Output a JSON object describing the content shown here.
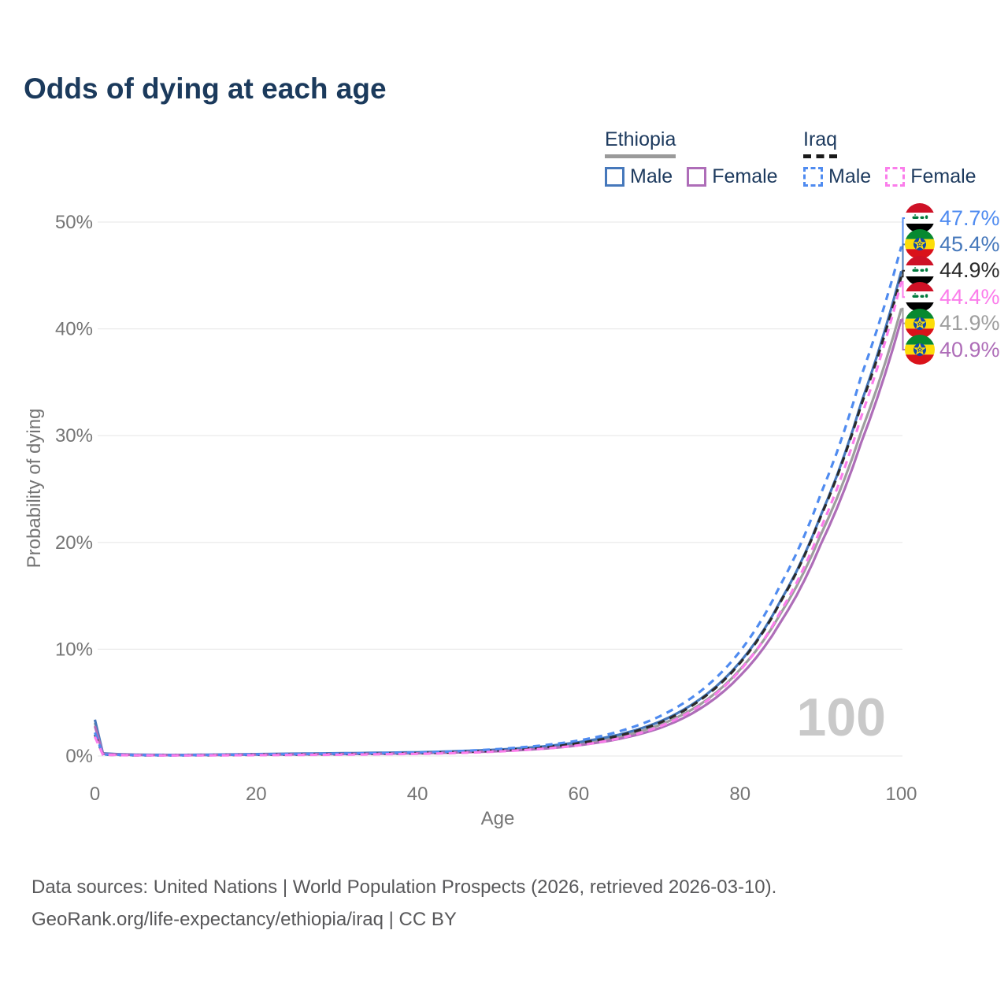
{
  "title": "Odds of dying at each age",
  "watermark": "100",
  "colors": {
    "title_text": "#1b3a5c",
    "legend_text": "#1d3a5e",
    "axis_text": "#757575",
    "grid_line": "#e9e9e9",
    "watermark_text": "#c9c9c9",
    "footer_text": "#58585a"
  },
  "legend": {
    "groups": [
      {
        "country": "Ethiopia",
        "line_style": "solid",
        "underline_color": "#9a9a9a",
        "items": [
          {
            "label": "Male",
            "color": "#4678bb",
            "style": "solid"
          },
          {
            "label": "Female",
            "color": "#ae6db8",
            "style": "solid"
          }
        ]
      },
      {
        "country": "Iraq",
        "line_style": "dashed",
        "underline_color": "#1a1a1a",
        "items": [
          {
            "label": "Male",
            "color": "#4f8bf0",
            "style": "dashed"
          },
          {
            "label": "Female",
            "color": "#fb7deb",
            "style": "dashed"
          }
        ]
      }
    ]
  },
  "footer": {
    "line1": "Data sources: United Nations | World Population Prospects (2026, retrieved 2026-03-10).",
    "line2": "GeoRank.org/life-expectancy/ethiopia/iraq | CC BY"
  },
  "chart_data": {
    "type": "line",
    "title": "Odds of dying at each age",
    "xlabel": "Age",
    "ylabel": "Probability of dying",
    "xlim": [
      0,
      100
    ],
    "ylim": [
      0,
      50
    ],
    "xticks": [
      0,
      20,
      40,
      60,
      80,
      100
    ],
    "yticks": [
      0,
      10,
      20,
      30,
      40,
      50
    ],
    "ytick_suffix": "%",
    "grid": "horizontal",
    "legend_position": "top-right",
    "x": [
      0,
      1,
      5,
      10,
      15,
      20,
      25,
      30,
      35,
      40,
      45,
      50,
      55,
      60,
      65,
      70,
      75,
      80,
      85,
      90,
      95,
      100
    ],
    "series": [
      {
        "name": "Iraq Male",
        "country": "Iraq",
        "sex": "Male",
        "color": "#4f8bf0",
        "line": "dashed",
        "end_label": "47.7%",
        "end_value": 47.7,
        "values": [
          2.2,
          0.15,
          0.08,
          0.07,
          0.1,
          0.15,
          0.18,
          0.22,
          0.27,
          0.33,
          0.45,
          0.65,
          0.95,
          1.45,
          2.3,
          3.7,
          6.0,
          9.8,
          16.0,
          24.5,
          35.5,
          47.7
        ]
      },
      {
        "name": "Ethiopia Male",
        "country": "Ethiopia",
        "sex": "Male",
        "color": "#4678bb",
        "line": "solid",
        "end_label": "45.4%",
        "end_value": 45.4,
        "values": [
          3.4,
          0.25,
          0.12,
          0.1,
          0.13,
          0.18,
          0.22,
          0.26,
          0.3,
          0.35,
          0.45,
          0.6,
          0.85,
          1.3,
          2.0,
          3.2,
          5.3,
          8.8,
          14.5,
          22.5,
          33.0,
          45.4
        ]
      },
      {
        "name": "Iraq Both sexes",
        "country": "Iraq",
        "sex": "Both",
        "color": "#2b2b2b",
        "line": "dashed",
        "end_label": "44.9%",
        "end_value": 44.9,
        "values": [
          2.0,
          0.13,
          0.07,
          0.06,
          0.08,
          0.12,
          0.14,
          0.17,
          0.21,
          0.26,
          0.36,
          0.52,
          0.78,
          1.2,
          1.9,
          3.1,
          5.2,
          8.7,
          14.4,
          22.4,
          32.8,
          44.9
        ]
      },
      {
        "name": "Iraq Female",
        "country": "Iraq",
        "sex": "Female",
        "color": "#fb7deb",
        "line": "dashed",
        "end_label": "44.4%",
        "end_value": 44.4,
        "values": [
          1.8,
          0.12,
          0.06,
          0.05,
          0.06,
          0.08,
          0.1,
          0.12,
          0.16,
          0.2,
          0.28,
          0.42,
          0.65,
          1.0,
          1.65,
          2.75,
          4.7,
          8.0,
          13.5,
          21.3,
          31.7,
          44.4
        ]
      },
      {
        "name": "Ethiopia Both sexes",
        "country": "Ethiopia",
        "sex": "Both",
        "color": "#9e9e9e",
        "line": "solid",
        "end_label": "41.9%",
        "end_value": 41.9,
        "values": [
          3.1,
          0.22,
          0.11,
          0.09,
          0.11,
          0.15,
          0.18,
          0.21,
          0.25,
          0.29,
          0.38,
          0.52,
          0.75,
          1.15,
          1.8,
          2.9,
          4.8,
          8.1,
          13.3,
          20.7,
          30.3,
          41.9
        ]
      },
      {
        "name": "Ethiopia Female",
        "country": "Ethiopia",
        "sex": "Female",
        "color": "#ae6db8",
        "line": "solid",
        "end_label": "40.9%",
        "end_value": 40.9,
        "values": [
          2.8,
          0.2,
          0.1,
          0.08,
          0.1,
          0.13,
          0.15,
          0.18,
          0.21,
          0.25,
          0.33,
          0.45,
          0.65,
          1.0,
          1.6,
          2.6,
          4.4,
          7.5,
          12.5,
          19.8,
          29.3,
          40.9
        ]
      }
    ],
    "draw_order": [
      4,
      1,
      5,
      2,
      0,
      3
    ],
    "flags": {
      "Iraq": {
        "stripes": [
          "#ce1126",
          "#ffffff",
          "#000000"
        ],
        "script_color": "#007a3d"
      },
      "Ethiopia": {
        "stripes": [
          "#078930",
          "#fcdd09",
          "#da121a"
        ],
        "emblem_circle": "#0f47af",
        "emblem_star": "#fcdd09"
      }
    }
  }
}
